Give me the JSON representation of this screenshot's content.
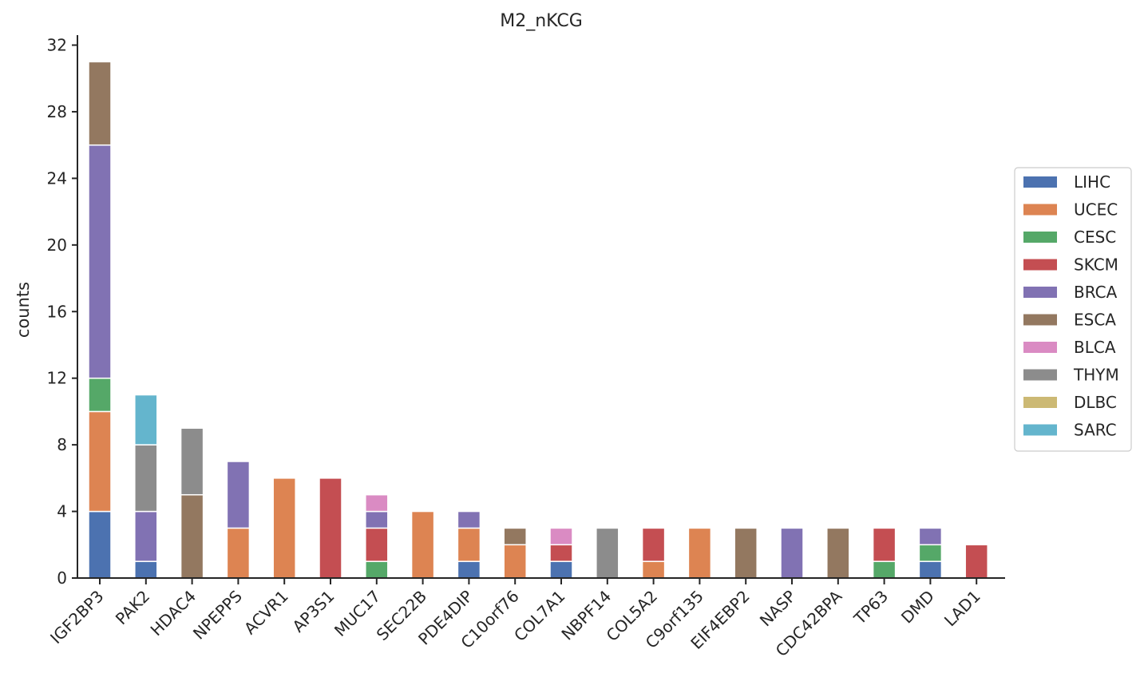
{
  "chart_data": {
    "type": "bar",
    "stacked": true,
    "title": "M2_nKCG",
    "xlabel": "",
    "ylabel": "counts",
    "ylim": [
      0,
      32.6
    ],
    "yticks": [
      0,
      4,
      8,
      12,
      16,
      20,
      24,
      28,
      32
    ],
    "grid": false,
    "legend_position": "right",
    "categories": [
      "IGF2BP3",
      "PAK2",
      "HDAC4",
      "NPEPPS",
      "ACVR1",
      "AP3S1",
      "MUC17",
      "SEC22B",
      "PDE4DIP",
      "C10orf76",
      "COL7A1",
      "NBPF14",
      "COL5A2",
      "C9orf135",
      "EIF4EBP2",
      "NASP",
      "CDC42BPA",
      "TP63",
      "DMD",
      "LAD1"
    ],
    "series": [
      {
        "name": "LIHC",
        "color": "#4c72b0",
        "values": [
          4,
          1,
          0,
          0,
          0,
          0,
          0,
          0,
          1,
          0,
          1,
          0,
          0,
          0,
          0,
          0,
          0,
          0,
          1,
          0
        ]
      },
      {
        "name": "UCEC",
        "color": "#dd8452",
        "values": [
          6,
          0,
          0,
          3,
          6,
          0,
          0,
          4,
          2,
          2,
          0,
          0,
          1,
          3,
          0,
          0,
          0,
          0,
          0,
          0
        ]
      },
      {
        "name": "CESC",
        "color": "#55a868",
        "values": [
          2,
          0,
          0,
          0,
          0,
          0,
          1,
          0,
          0,
          0,
          0,
          0,
          0,
          0,
          0,
          0,
          0,
          1,
          1,
          0
        ]
      },
      {
        "name": "SKCM",
        "color": "#c44e52",
        "values": [
          0,
          0,
          0,
          0,
          0,
          6,
          2,
          0,
          0,
          0,
          1,
          0,
          2,
          0,
          0,
          0,
          0,
          2,
          0,
          2
        ]
      },
      {
        "name": "BRCA",
        "color": "#8172b3",
        "values": [
          14,
          3,
          0,
          4,
          0,
          0,
          1,
          0,
          1,
          0,
          0,
          0,
          0,
          0,
          0,
          3,
          0,
          0,
          1,
          0
        ]
      },
      {
        "name": "ESCA",
        "color": "#937860",
        "values": [
          5,
          0,
          5,
          0,
          0,
          0,
          0,
          0,
          0,
          1,
          0,
          0,
          0,
          0,
          3,
          0,
          3,
          0,
          0,
          0
        ]
      },
      {
        "name": "BLCA",
        "color": "#da8bc3",
        "values": [
          0,
          0,
          0,
          0,
          0,
          0,
          1,
          0,
          0,
          0,
          1,
          0,
          0,
          0,
          0,
          0,
          0,
          0,
          0,
          0
        ]
      },
      {
        "name": "THYM",
        "color": "#8c8c8c",
        "values": [
          0,
          4,
          4,
          0,
          0,
          0,
          0,
          0,
          0,
          0,
          0,
          3,
          0,
          0,
          0,
          0,
          0,
          0,
          0,
          0
        ]
      },
      {
        "name": "DLBC",
        "color": "#ccb974",
        "values": [
          0,
          0,
          0,
          0,
          0,
          0,
          0,
          0,
          0,
          0,
          0,
          0,
          0,
          0,
          0,
          0,
          0,
          0,
          0,
          0
        ]
      },
      {
        "name": "SARC",
        "color": "#64b5cd",
        "values": [
          0,
          3,
          0,
          0,
          0,
          0,
          0,
          0,
          0,
          0,
          0,
          0,
          0,
          0,
          0,
          0,
          0,
          0,
          0,
          0
        ]
      }
    ]
  }
}
